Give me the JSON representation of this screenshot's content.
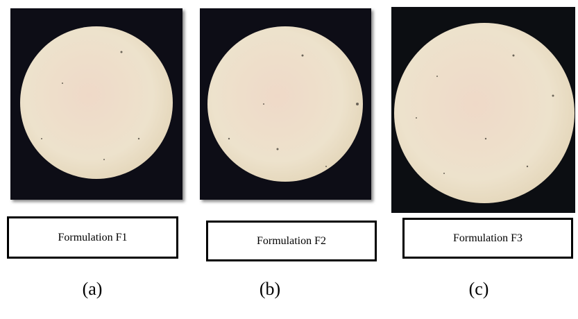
{
  "panels": [
    {
      "caption": "Formulation F1",
      "label": "(a)"
    },
    {
      "caption": "Formulation F2",
      "label": "(b)"
    },
    {
      "caption": "Formulation F3",
      "label": "(c)"
    }
  ]
}
